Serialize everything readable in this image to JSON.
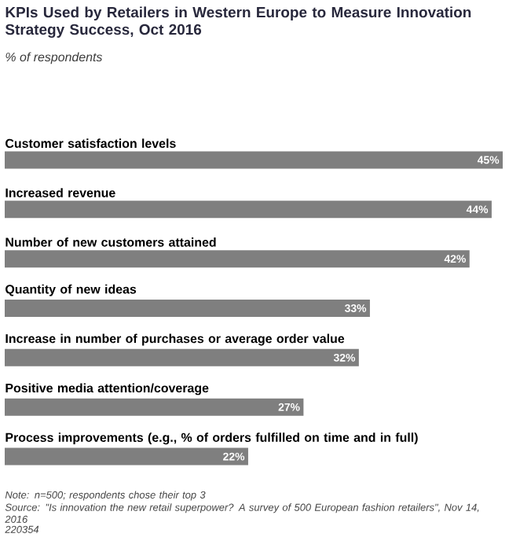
{
  "chart_data": {
    "type": "bar",
    "orientation": "horizontal",
    "title": "KPIs Used by Retailers in Western Europe to Measure Innovation Strategy Success, Oct 2016",
    "subtitle": "% of respondents",
    "categories": [
      "Customer satisfaction levels",
      "Increased revenue",
      "Number of new customers attained",
      "Quantity of new ideas",
      "Increase in number of purchases or average order value",
      "Positive media attention/coverage",
      "Process improvements (e.g., % of orders fulfilled on time and in full)"
    ],
    "values": [
      45,
      44,
      42,
      33,
      32,
      27,
      22
    ],
    "value_labels": [
      "45%",
      "44%",
      "42%",
      "33%",
      "32%",
      "27%",
      "22%"
    ],
    "color": "#7f7f7f",
    "annotations": [
      "Note: n=500; respondents chose their top 3",
      "Source: \"Is innovation the new retail superpower? A survey of 500 European fashion retailers\", Nov 14, 2016",
      "220354"
    ]
  }
}
